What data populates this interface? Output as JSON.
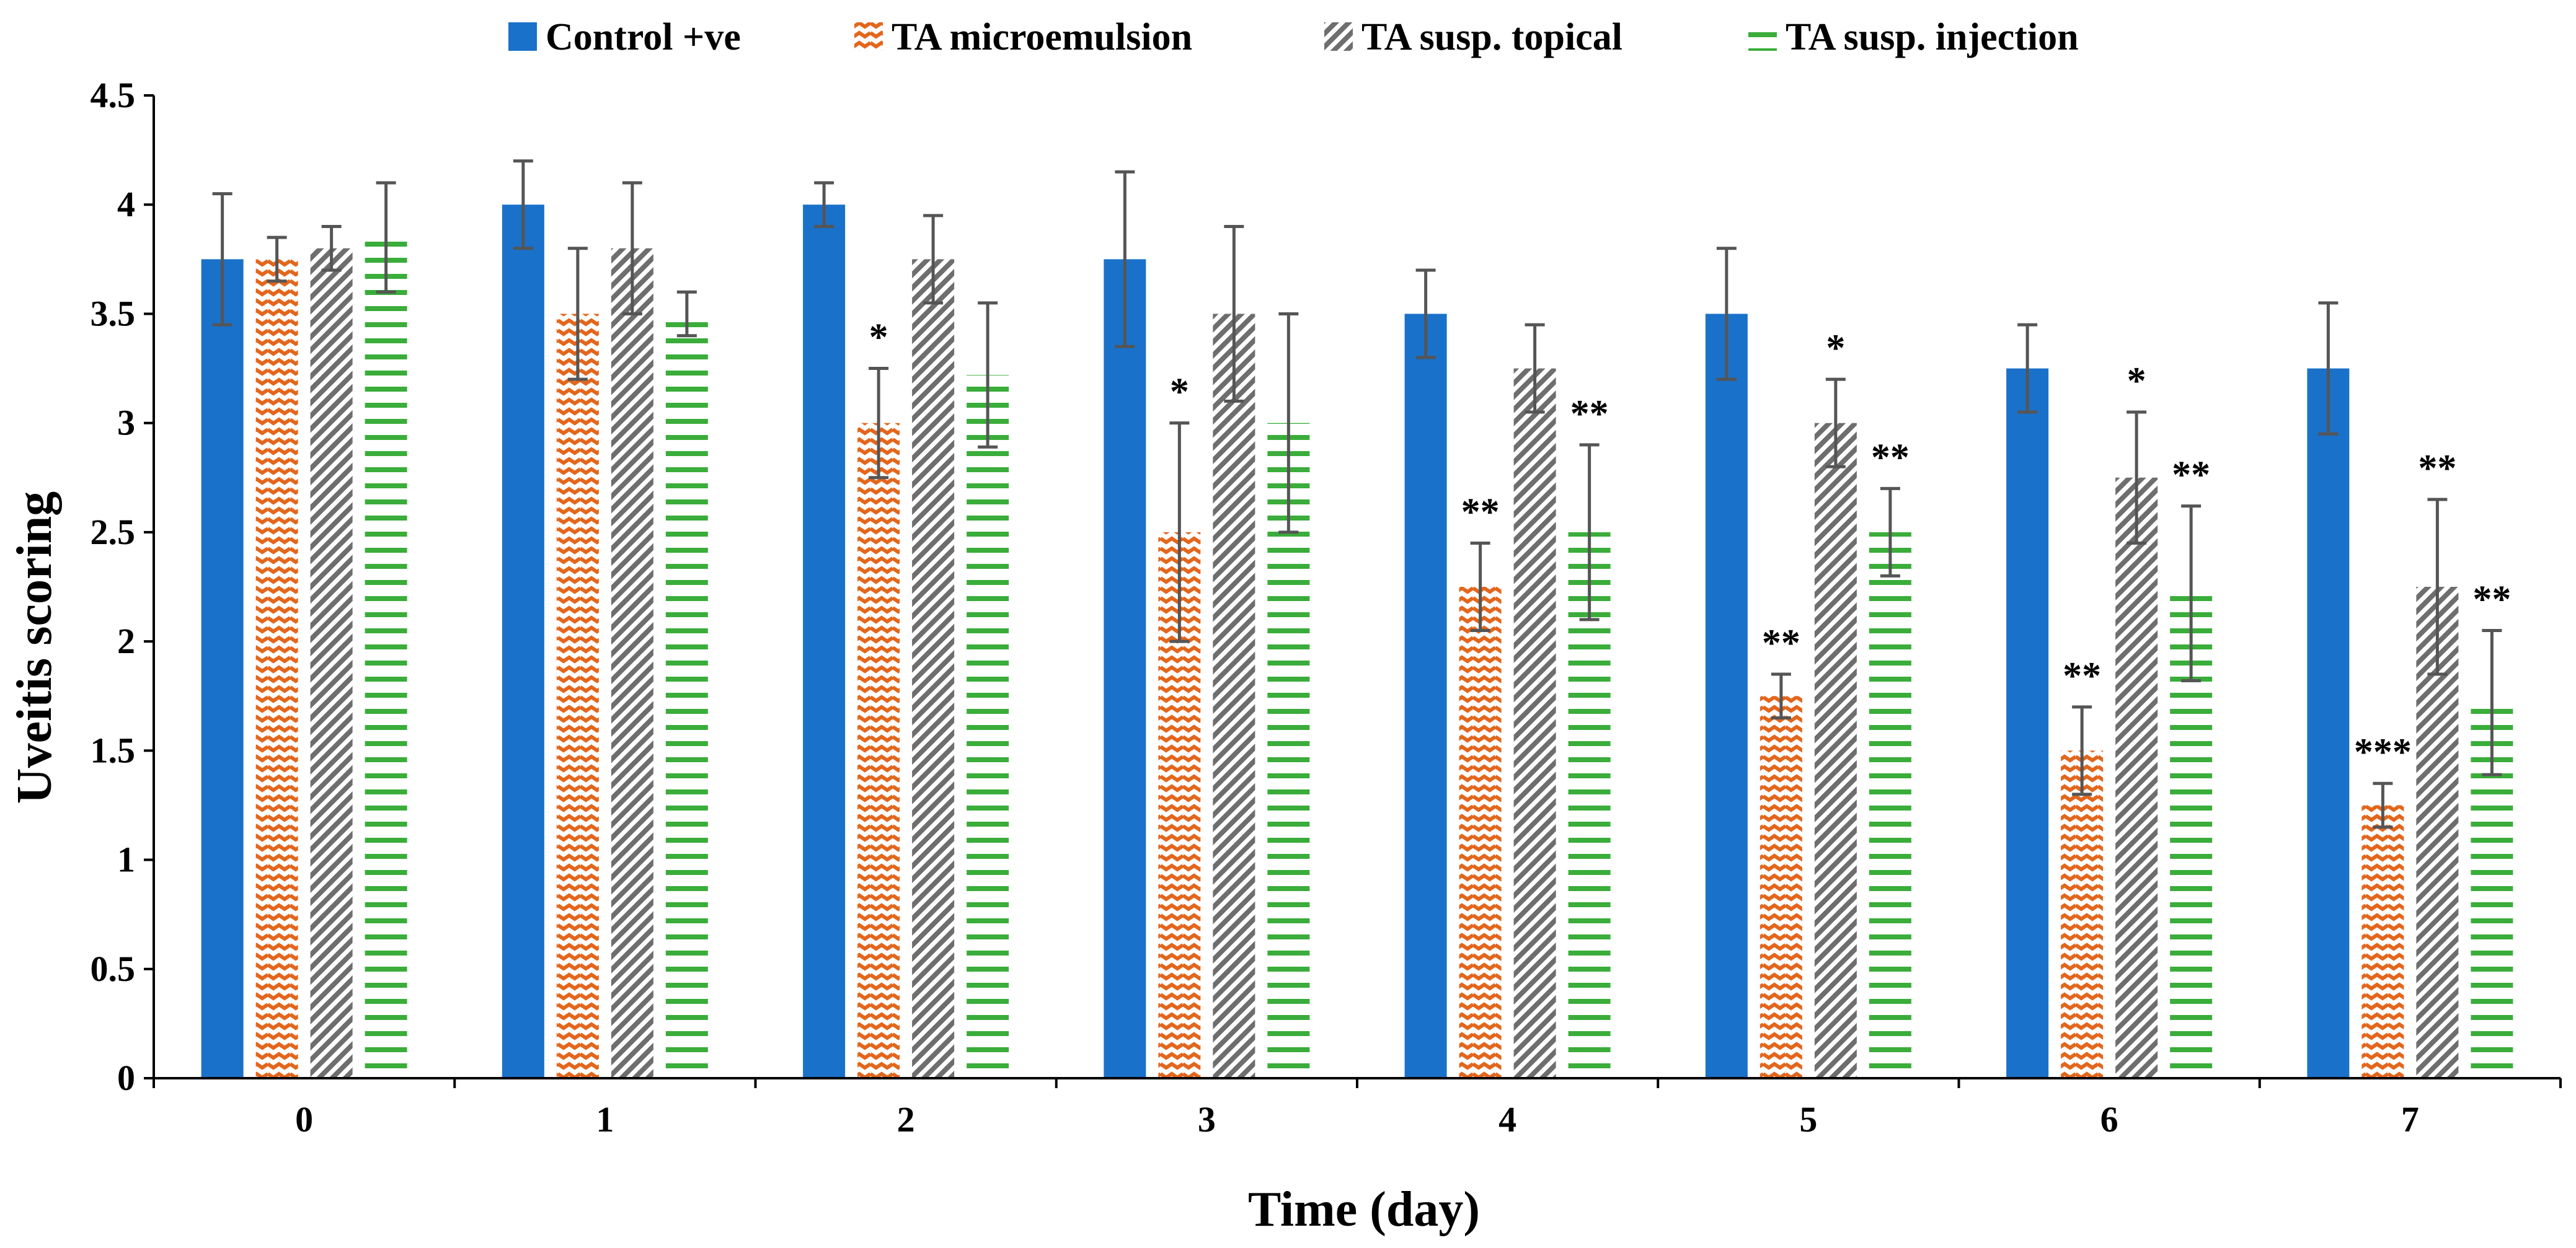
{
  "chart_data": {
    "type": "bar",
    "title": "",
    "xlabel": "Time (day)",
    "ylabel": "Uveitis scoring",
    "ylim": [
      0,
      4.5
    ],
    "yticks": [
      "0",
      "0.5",
      "1",
      "1.5",
      "2",
      "2.5",
      "3",
      "3.5",
      "4",
      "4.5"
    ],
    "categories": [
      "0",
      "1",
      "2",
      "3",
      "4",
      "5",
      "6",
      "7"
    ],
    "legend_position": "top",
    "grid": false,
    "series": [
      {
        "name": "Control +ve",
        "pattern": "solid",
        "color": "#1a71c9",
        "values": [
          3.75,
          4.0,
          4.0,
          3.75,
          3.5,
          3.5,
          3.25,
          3.25
        ],
        "errors": [
          0.3,
          0.2,
          0.1,
          0.4,
          0.2,
          0.3,
          0.2,
          0.3
        ],
        "significance": [
          "",
          "",
          "",
          "",
          "",
          "",
          "",
          ""
        ]
      },
      {
        "name": "TA microemulsion",
        "pattern": "zigzag",
        "color": "#e3661c",
        "values": [
          3.75,
          3.5,
          3.0,
          2.5,
          2.25,
          1.75,
          1.5,
          1.25
        ],
        "errors": [
          0.1,
          0.3,
          0.25,
          0.5,
          0.2,
          0.1,
          0.2,
          0.1
        ],
        "significance": [
          "",
          "",
          "*",
          "*",
          "**",
          "**",
          "**",
          "***"
        ]
      },
      {
        "name": "TA susp. topical",
        "pattern": "diagonal",
        "color": "#6e6e6e",
        "values": [
          3.8,
          3.8,
          3.75,
          3.5,
          3.25,
          3.0,
          2.75,
          2.25
        ],
        "errors": [
          0.1,
          0.3,
          0.2,
          0.4,
          0.2,
          0.2,
          0.3,
          0.4
        ],
        "significance": [
          "",
          "",
          "",
          "",
          "",
          "*",
          "*",
          "**"
        ]
      },
      {
        "name": "TA susp. injection",
        "pattern": "horizontal",
        "color": "#3aad3a",
        "values": [
          3.85,
          3.5,
          3.22,
          3.0,
          2.5,
          2.5,
          2.22,
          1.72
        ],
        "errors": [
          0.25,
          0.1,
          0.33,
          0.5,
          0.4,
          0.2,
          0.4,
          0.33
        ],
        "significance": [
          "",
          "",
          "",
          "",
          "**",
          "**",
          "**",
          "**"
        ]
      }
    ]
  }
}
